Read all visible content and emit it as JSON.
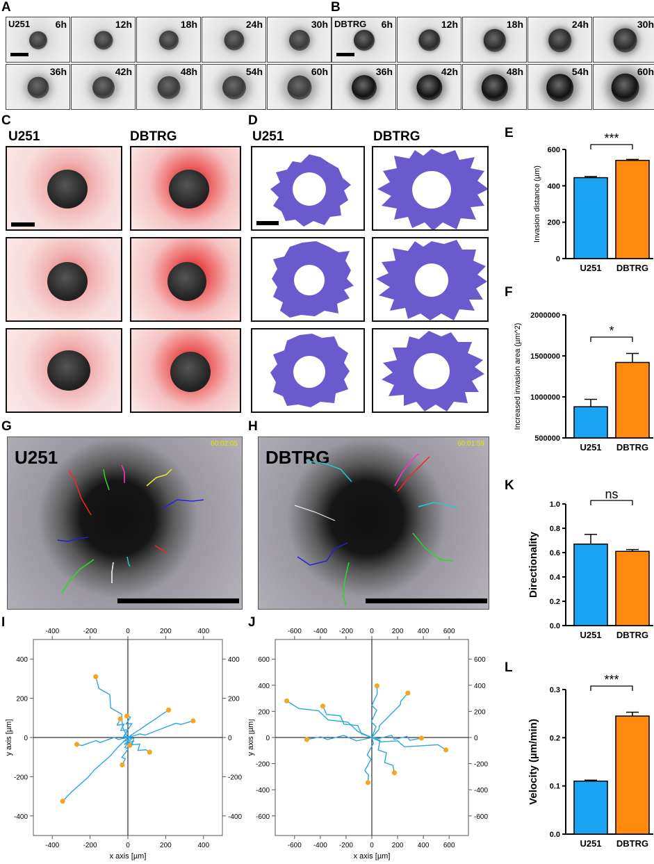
{
  "panels": {
    "A": {
      "label": "A",
      "cell_line": "U251",
      "times_row1": [
        "6h",
        "12h",
        "18h",
        "24h",
        "30h"
      ],
      "times_row2": [
        "36h",
        "42h",
        "48h",
        "54h",
        "60h"
      ]
    },
    "B": {
      "label": "B",
      "cell_line": "DBTRG",
      "times_row1": [
        "6h",
        "12h",
        "18h",
        "24h",
        "30h"
      ],
      "times_row2": [
        "36h",
        "42h",
        "48h",
        "54h",
        "60h"
      ]
    },
    "C": {
      "label": "C",
      "col1": "U251",
      "col2": "DBTRG"
    },
    "D": {
      "label": "D",
      "col1": "U251",
      "col2": "DBTRG"
    },
    "G": {
      "label": "G",
      "cell_line": "U251",
      "timestamp": "60:02:05"
    },
    "H": {
      "label": "H",
      "cell_line": "DBTRG",
      "timestamp": "60:01:59"
    },
    "I": {
      "label": "I",
      "xlabel": "x axis [µm]",
      "ylabel": "y axis [µm]"
    },
    "J": {
      "label": "J",
      "xlabel": "x axis [µm]",
      "ylabel": "y axis [µm]"
    }
  },
  "colors": {
    "u251": "#1ba3f4",
    "dbtrg": "#ff8a0d",
    "mask": "#6a5acd",
    "track": "#2aa7e0",
    "endpoint": "#f5a623"
  },
  "chart_data": [
    {
      "id": "E",
      "label": "E",
      "type": "bar",
      "categories": [
        "U251",
        "DBTRG"
      ],
      "values": [
        445,
        540
      ],
      "errors": [
        6,
        5
      ],
      "ylabel": "Invasion distance (µm)",
      "ylim": [
        0,
        600
      ],
      "yticks": [
        "0",
        "200",
        "400",
        "600"
      ],
      "significance": "***"
    },
    {
      "id": "F",
      "label": "F",
      "type": "bar",
      "categories": [
        "U251",
        "DBTRG"
      ],
      "values": [
        880000,
        1420000
      ],
      "errors": [
        90000,
        110000
      ],
      "ylabel": "Increased invasion area (µm^2)",
      "ylim": [
        500000,
        2000000
      ],
      "yticks": [
        "500000",
        "1000000",
        "1500000",
        "2000000"
      ],
      "significance": "*"
    },
    {
      "id": "K",
      "label": "K",
      "type": "bar",
      "categories": [
        "U251",
        "DBTRG"
      ],
      "values": [
        0.67,
        0.61
      ],
      "errors": [
        0.08,
        0.015
      ],
      "ylabel": "Directionality",
      "ylim": [
        0,
        1
      ],
      "yticks": [
        "0.0",
        "0.2",
        "0.4",
        "0.6",
        "0.8",
        "1.0"
      ],
      "significance": "ns"
    },
    {
      "id": "L",
      "label": "L",
      "type": "bar",
      "categories": [
        "U251",
        "DBTRG"
      ],
      "values": [
        0.11,
        0.245
      ],
      "errors": [
        0.002,
        0.008
      ],
      "ylabel": "Velocity (µm/min)",
      "ylim": [
        0,
        0.3
      ],
      "yticks": [
        "0.0",
        "0.1",
        "0.2",
        "0.3"
      ],
      "significance": "***"
    },
    {
      "id": "I",
      "type": "scatter",
      "title": "",
      "xlabel": "x axis [µm]",
      "ylabel": "y axis [µm]",
      "xlim": [
        -500,
        500
      ],
      "ylim": [
        -500,
        500
      ],
      "xticks": [
        "-400",
        "-200",
        "0",
        "200",
        "400"
      ],
      "yticks": [
        "-400",
        "-200",
        "0",
        "200",
        "400"
      ],
      "endpoints": [
        [
          -170,
          310
        ],
        [
          -40,
          95
        ],
        [
          -5,
          110
        ],
        [
          215,
          140
        ],
        [
          345,
          85
        ],
        [
          -270,
          -35
        ],
        [
          10,
          -40
        ],
        [
          -30,
          -140
        ],
        [
          115,
          -75
        ],
        [
          -345,
          -325
        ]
      ]
    },
    {
      "id": "J",
      "type": "scatter",
      "title": "",
      "xlabel": "x axis [µm]",
      "ylabel": "y axis [µm]",
      "xlim": [
        -750,
        750
      ],
      "ylim": [
        -750,
        750
      ],
      "xticks": [
        "-600",
        "-400",
        "-200",
        "0",
        "200",
        "400",
        "600"
      ],
      "yticks": [
        "-600",
        "-400",
        "-200",
        "0",
        "200",
        "400",
        "600"
      ],
      "endpoints": [
        [
          -660,
          280
        ],
        [
          -380,
          240
        ],
        [
          -505,
          -15
        ],
        [
          40,
          395
        ],
        [
          280,
          340
        ],
        [
          385,
          -5
        ],
        [
          575,
          -95
        ],
        [
          175,
          -270
        ],
        [
          -30,
          -345
        ]
      ]
    }
  ]
}
